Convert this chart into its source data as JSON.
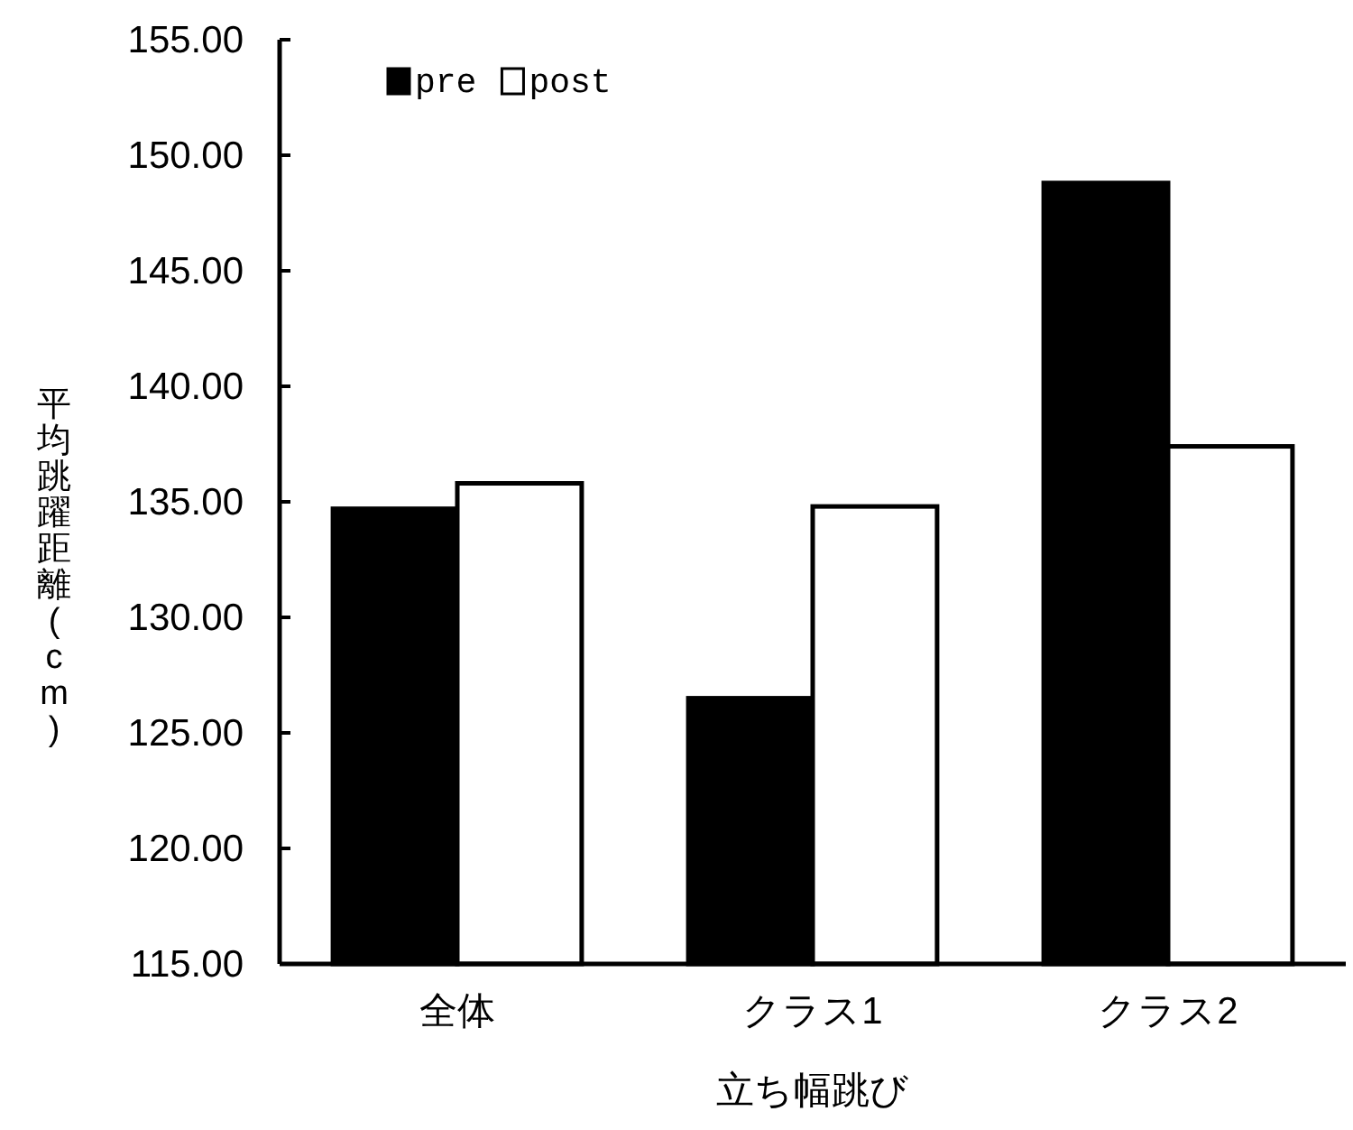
{
  "chart_data": {
    "type": "bar",
    "xlabel": "立ち幅跳び",
    "ylabel": "平均跳躍距離(cm)",
    "categories": [
      "全体",
      "クラス1",
      "クラス2"
    ],
    "series": [
      {
        "name": "pre",
        "color": "#000000",
        "values": [
          134.7,
          126.5,
          148.8
        ]
      },
      {
        "name": "post",
        "color": "#ffffff",
        "values": [
          135.8,
          134.8,
          137.4
        ]
      }
    ],
    "ylim": [
      115,
      155
    ],
    "yticks": [
      {
        "value": 115,
        "label": "115.00"
      },
      {
        "value": 120,
        "label": "120.00"
      },
      {
        "value": 125,
        "label": "125.00"
      },
      {
        "value": 130,
        "label": "130.00"
      },
      {
        "value": 135,
        "label": "135.00"
      },
      {
        "value": 140,
        "label": "140.00"
      },
      {
        "value": 145,
        "label": "145.00"
      },
      {
        "value": 150,
        "label": "150.00"
      },
      {
        "value": 155,
        "label": "155.00"
      }
    ],
    "grid": false,
    "legend": "top left"
  }
}
